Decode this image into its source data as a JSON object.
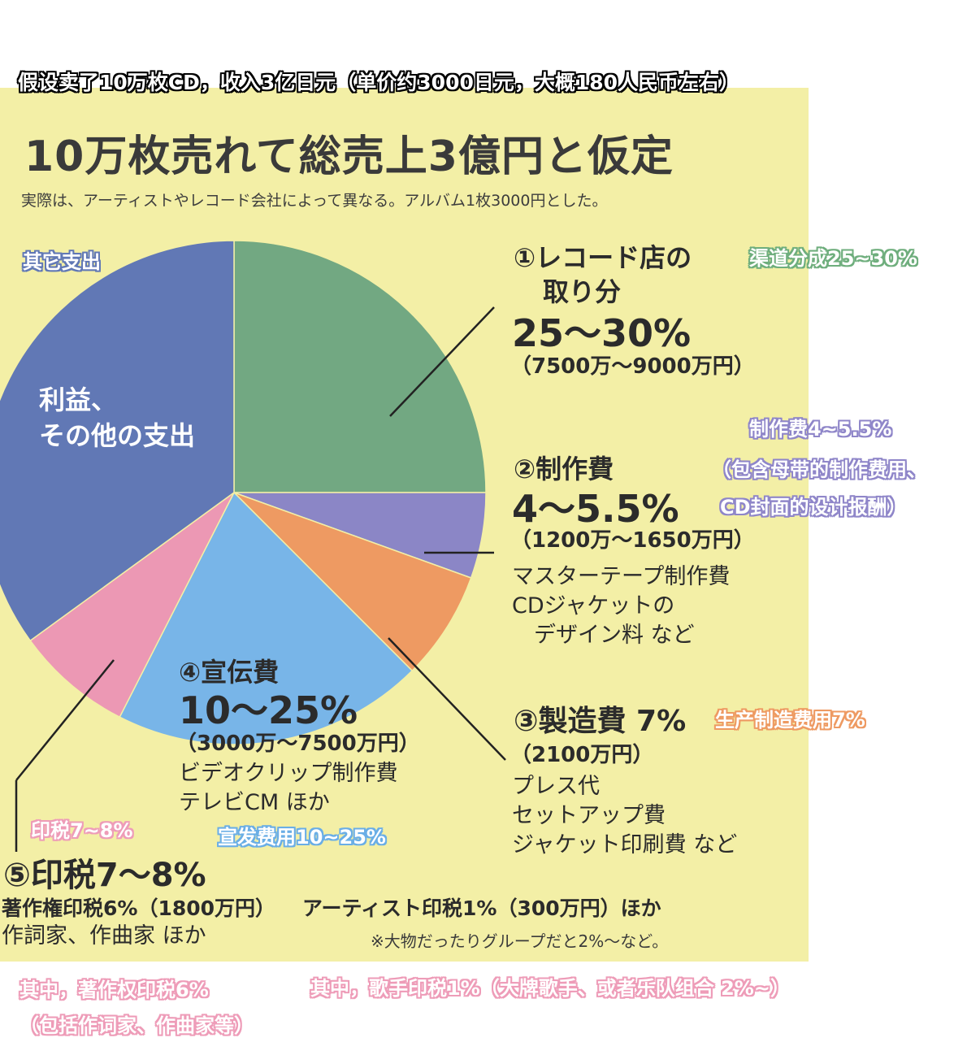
{
  "banner": "假设卖了10万枚CD，收入3亿日元（单价约3000日元，大概180人民币左右）",
  "jp_title": "10万枚売れて総売上3億円と仮定",
  "jp_subtitle": "実際は、アーティストやレコード会社によって異なる。アルバム1枚3000円とした。",
  "chart_data": {
    "type": "pie",
    "title": "10万枚売れて総売上3億円と仮定",
    "unit": "%",
    "slices": [
      {
        "label": "①レコード店の取り分",
        "value": 25,
        "range": "25~30%",
        "color": "#72a882"
      },
      {
        "label": "②制作費",
        "value": 5.5,
        "range": "4~5.5%",
        "color": "#8b86c6"
      },
      {
        "label": "③製造費",
        "value": 7,
        "range": "7%",
        "color": "#ee9a62"
      },
      {
        "label": "④宣伝費",
        "value": 20,
        "range": "10~25%",
        "color": "#78b5e8"
      },
      {
        "label": "⑤印税",
        "value": 7.5,
        "range": "7~8%",
        "color": "#ec98b4"
      },
      {
        "label": "利益、その他の支出",
        "value": 35,
        "range": "",
        "color": "#6178b5"
      }
    ]
  },
  "slices_text": {
    "record_store": {
      "title_line1": "①レコード店の",
      "title_line2": "取り分",
      "pct": "25～30%",
      "amount": "（7500万～9000万円）"
    },
    "production": {
      "title": "②制作費",
      "pct": "4～5.5%",
      "amount": "（1200万～1650万円）",
      "detail": "マスターテープ制作費\nCDジャケットの\n　デザイン料 など"
    },
    "manufacturing": {
      "title": "③製造費 7%",
      "amount": "（2100万円）",
      "detail": "プレス代\nセットアップ費\nジャケット印刷費 など"
    },
    "promotion": {
      "title": "④宣伝費",
      "pct": "10～25%",
      "amount": "（3000万～7500万円）",
      "detail": "ビデオクリップ制作費\nテレビCM ほか"
    },
    "royalty": {
      "title": "⑤印税7～8%",
      "copyright": "著作権印税6%（1800万円）",
      "copyright_detail": "作詞家、作曲家 ほか",
      "artist": "アーティスト印税1%（300万円）ほか",
      "artist_note": "※大物だったりグループだと2%～など。"
    },
    "profit": {
      "label_line1": "利益、",
      "label_line2": "その他の支出"
    }
  },
  "annotations": {
    "other": "其它支出",
    "channel": "渠道分成25~30%",
    "production_1": "制作费4~5.5%",
    "production_2": "（包含母带的制作费用、",
    "production_3": "CD封面的设计报酬）",
    "manufacturing": "生产制造费用7%",
    "royalty": "印税7~8%",
    "promotion": "宣发费用10~25%",
    "copyright_1": "其中，著作权印税6%",
    "copyright_2": "（包括作词家、作曲家等）",
    "artist": "其中，歌手印税1%（大牌歌手、或者乐队组合 2%~）"
  },
  "colors": {
    "background": "#f3efa6",
    "green": "#72a882",
    "purple": "#8b86c6",
    "orange": "#ee9a62",
    "blue": "#78b5e8",
    "pink": "#ec98b4",
    "slate": "#6178b5"
  }
}
